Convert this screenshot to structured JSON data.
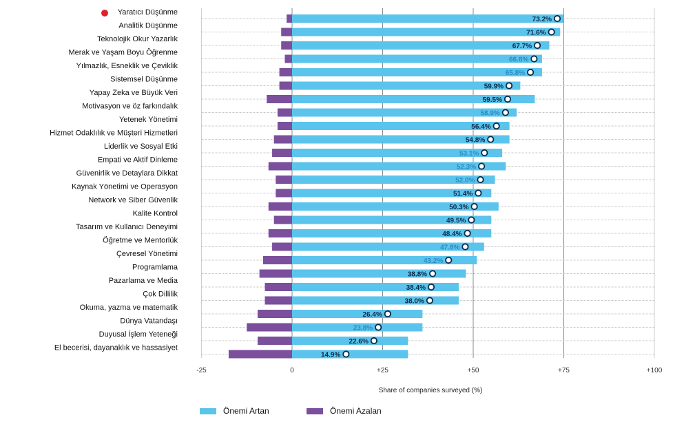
{
  "chart_data": {
    "type": "bar",
    "orientation": "horizontal",
    "xlabel": "Share of companies surveyed (%)",
    "xlim": [
      -25,
      100
    ],
    "xticks": [
      {
        "value": -25,
        "label": "-25"
      },
      {
        "value": 0,
        "label": "0"
      },
      {
        "value": 25,
        "label": "+25"
      },
      {
        "value": 50,
        "label": "+50"
      },
      {
        "value": 75,
        "label": "+75"
      },
      {
        "value": 100,
        "label": "+100"
      }
    ],
    "grid": true,
    "categories": [
      "Yaratıcı Düşünme",
      "Analitik Düşünme",
      "Teknolojik Okur Yazarlık",
      "Merak ve Yaşam Boyu Öğrenme",
      "Yılmazlık, Esneklik ve Çeviklik",
      "Sistemsel Düşünme",
      "Yapay Zeka ve Büyük Veri",
      "Motivasyon ve öz farkındalık",
      "Yetenek Yönetimi",
      "Hizmet Odaklılık ve Müşteri Hizmetleri",
      "Liderlik ve Sosyal Etki",
      "Empati ve Aktif Dinleme",
      "Güvenirlik ve Detaylara Dikkat",
      "Kaynak Yönetimi ve Operasyon",
      "Network ve Siber Güvenlik",
      "Kalite Kontrol",
      "Tasarım ve Kullanıcı Deneyimi",
      "Öğretme ve Mentorlük",
      "Çevresel Yönetimi",
      "Programlama",
      "Pazarlama ve Media",
      "Çok Dillilik",
      "Okuma, yazma ve matematik",
      "Dünya Vatandaşı",
      "Duyusal İşlem Yeteneği",
      "El becerisi, dayanaklık ve hassasiyet"
    ],
    "series": [
      {
        "name": "Önemi Artan",
        "color": "#5bc4ec",
        "values": [
          75,
          74,
          71,
          69,
          69,
          63,
          67,
          62,
          60,
          60,
          58,
          59,
          56,
          55,
          57,
          55,
          55,
          53,
          51,
          48,
          46,
          46,
          36,
          36,
          32,
          32
        ]
      },
      {
        "name": "Önemi Azalan",
        "color": "#7b4f9c",
        "values": [
          -1.5,
          -3,
          -3,
          -2,
          -3.5,
          -3.5,
          -7,
          -4,
          -4,
          -5,
          -5.5,
          -6.5,
          -4.5,
          -4.5,
          -6.5,
          -5,
          -6.5,
          -5.5,
          -8,
          -9,
          -7.5,
          -7.5,
          -9.5,
          -12.5,
          -9.5,
          -17.5
        ]
      }
    ],
    "net_markers": {
      "color_dark": "#0b2a4a",
      "color_light": "#2a8bc4",
      "values": [
        73.2,
        71.6,
        67.7,
        66.8,
        65.8,
        59.9,
        59.5,
        58.9,
        56.4,
        54.8,
        53.1,
        52.3,
        52.0,
        51.4,
        50.3,
        49.5,
        48.4,
        47.8,
        43.2,
        38.8,
        38.4,
        38.0,
        26.4,
        23.8,
        22.6,
        14.9
      ],
      "labels": [
        "73.2%",
        "71.6%",
        "67.7%",
        "66.8%",
        "65.8%",
        "59.9%",
        "59.5%",
        "58.9%",
        "56.4%",
        "54.8%",
        "53.1%",
        "52.3%",
        "52.0%",
        "51.4%",
        "50.3%",
        "49.5%",
        "48.4%",
        "47.8%",
        "43.2%",
        "38.8%",
        "38.4%",
        "38.0%",
        "26.4%",
        "23.8%",
        "22.6%",
        "14.9%"
      ],
      "light_label": [
        false,
        false,
        false,
        true,
        true,
        false,
        false,
        true,
        false,
        false,
        true,
        true,
        true,
        false,
        false,
        false,
        false,
        true,
        true,
        false,
        false,
        false,
        false,
        true,
        false,
        false
      ]
    },
    "highlight_marker_color": "#e0202a",
    "legend": [
      {
        "label": "Önemi Artan",
        "color": "#5bc4ec"
      },
      {
        "label": "Önemi Azalan",
        "color": "#7b4f9c"
      }
    ],
    "legend_placement": "bottom-left"
  }
}
